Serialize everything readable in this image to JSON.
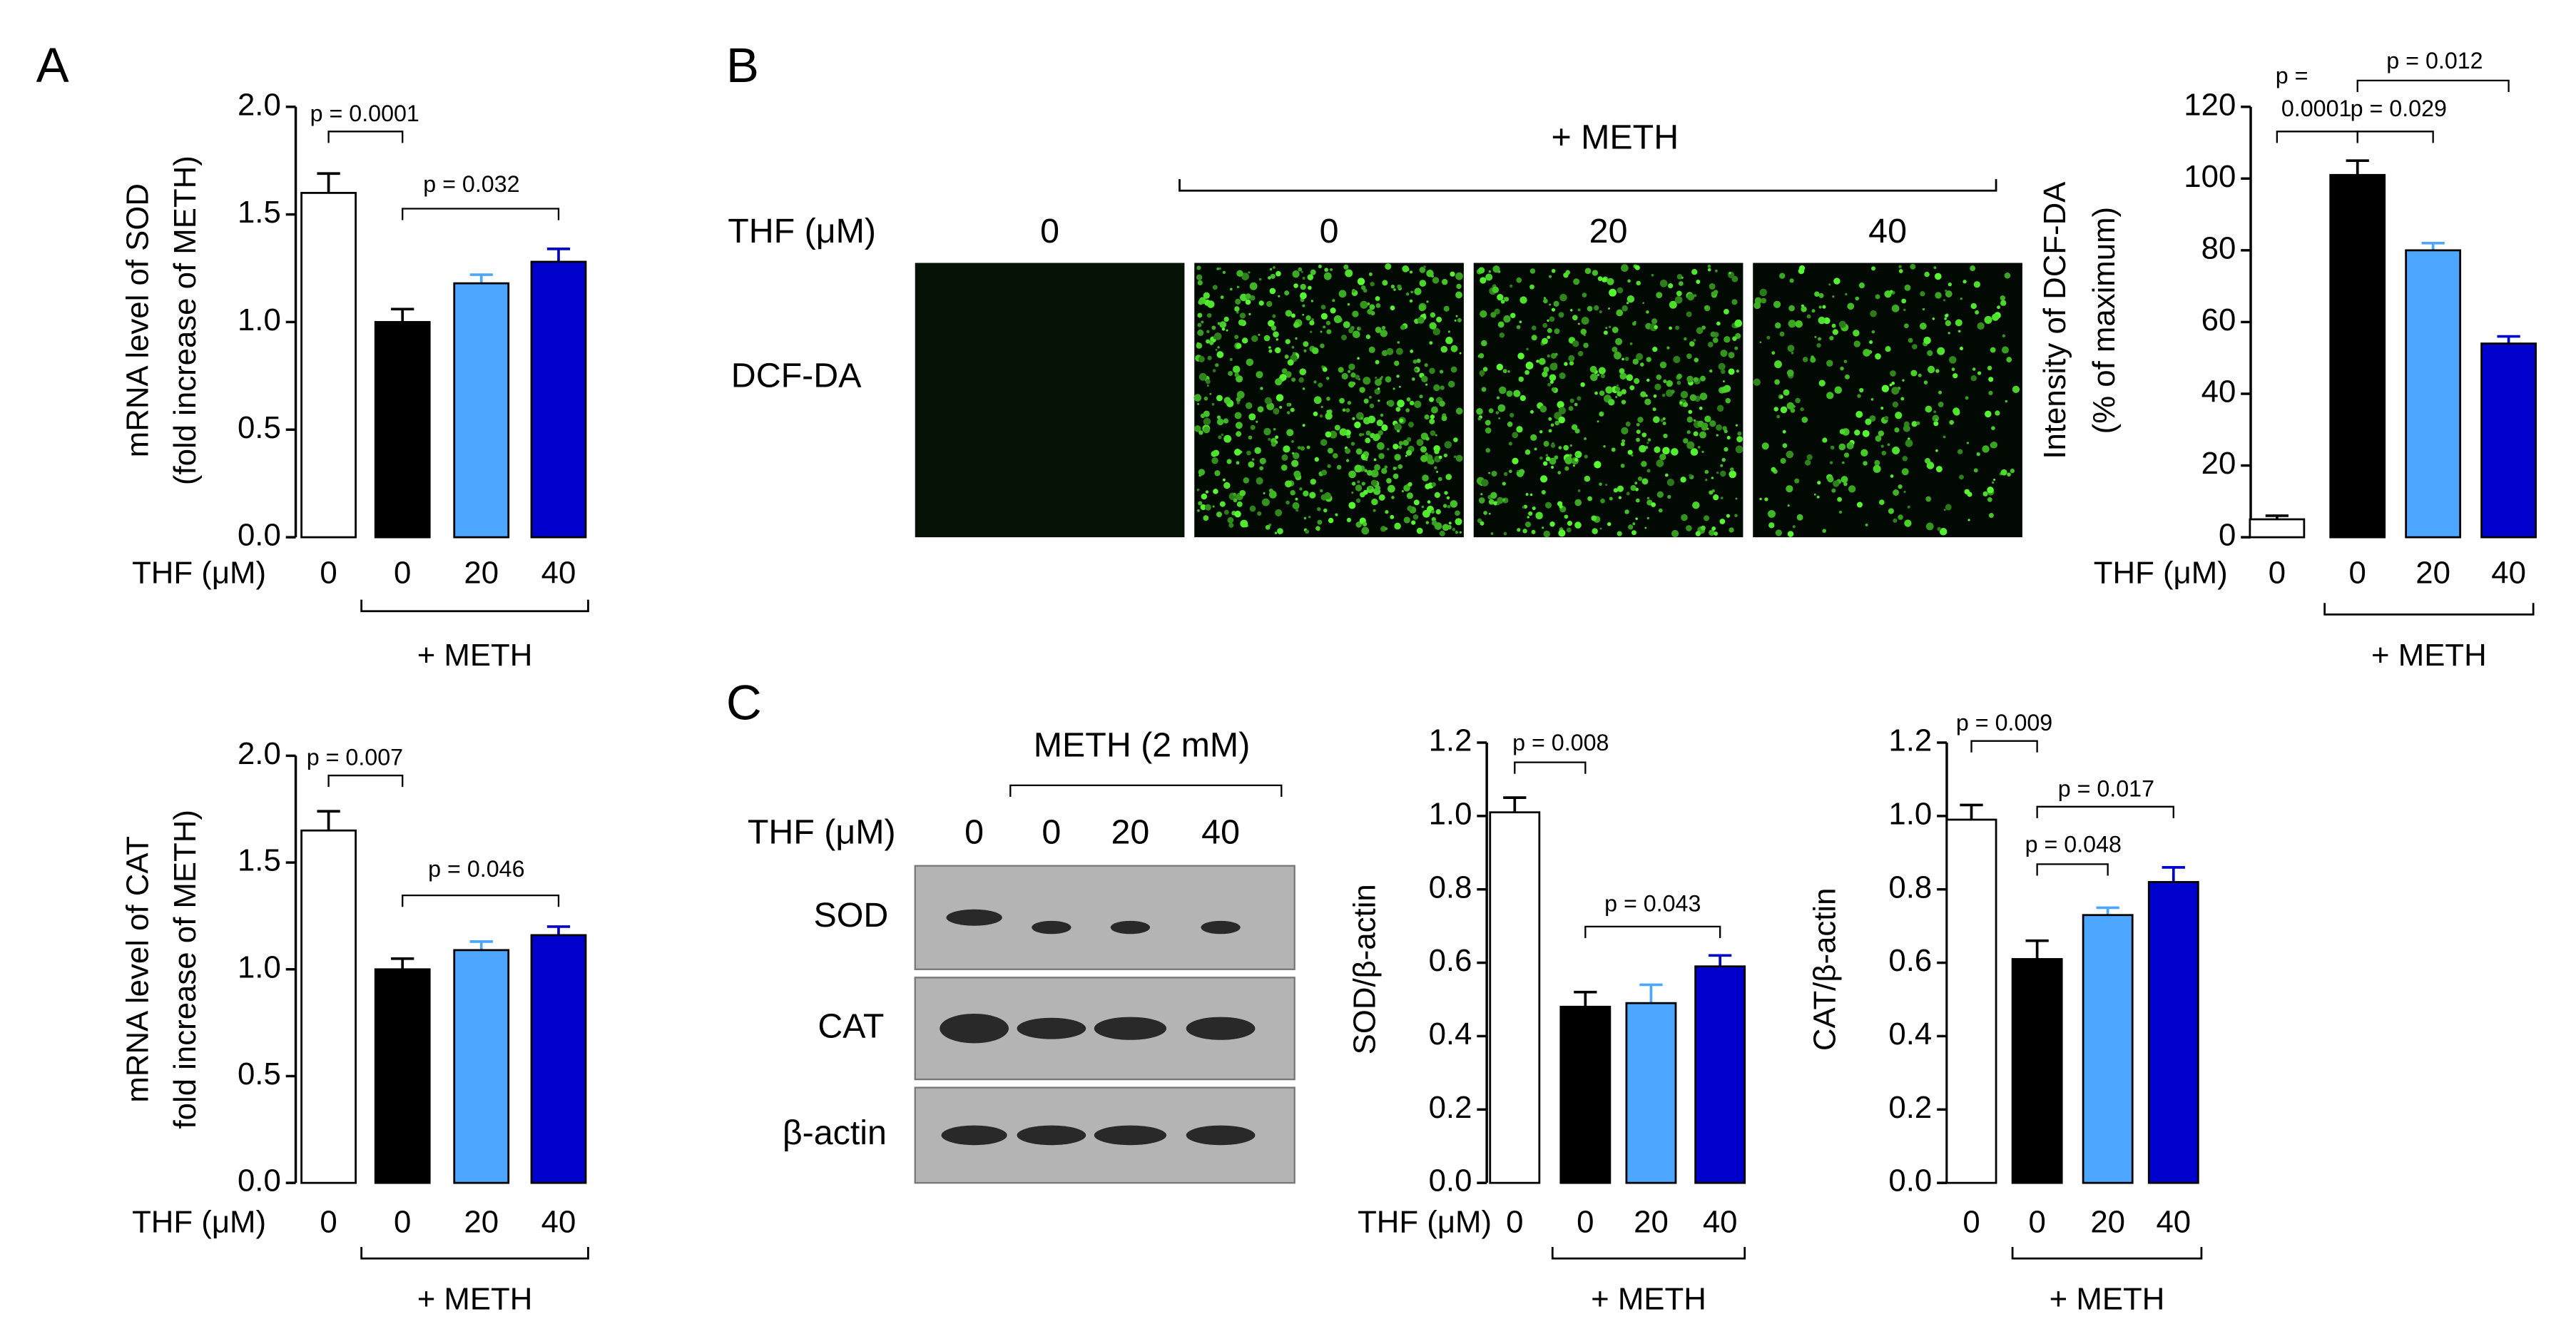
{
  "figure": {
    "panel_labels": [
      "A",
      "B",
      "C"
    ],
    "microscopy": {
      "group_label": "+ METH",
      "x_prefix": "THF (μM)",
      "lanes": [
        "0",
        "0",
        "20",
        "40"
      ],
      "row_label": "DCF-DA"
    },
    "western": {
      "group_label": "METH (2 mM)",
      "x_prefix": "THF (μM)",
      "lanes": [
        "0",
        "0",
        "20",
        "40"
      ],
      "rows": [
        "SOD",
        "CAT",
        "β-actin"
      ]
    }
  },
  "chart_data": [
    {
      "type": "bar",
      "ylabel": [
        "mRNA level of SOD",
        "(fold increase of METH)"
      ],
      "x_prefix": "THF (μM)",
      "group_label": "+ METH",
      "categories": [
        "0",
        "0",
        "20",
        "40"
      ],
      "values": [
        1.6,
        1.0,
        1.18,
        1.28
      ],
      "errors": [
        0.09,
        0.06,
        0.04,
        0.06
      ],
      "colors": [
        "#ffffff",
        "#000000",
        "#4da6ff",
        "#0000cc"
      ],
      "ylim": [
        0,
        2
      ],
      "yticks": [
        {
          "value": 0,
          "label": "0.0"
        },
        {
          "value": 0.5,
          "label": "0.5"
        },
        {
          "value": 1,
          "label": "1.0"
        },
        {
          "value": 1.5,
          "label": "1.5"
        },
        {
          "value": 2,
          "label": "2.0"
        }
      ],
      "annotations": [
        "p = 0.0001",
        "p = 0.032"
      ]
    },
    {
      "type": "bar",
      "ylabel": [
        "mRNA level of CAT",
        "fold increase of METH)"
      ],
      "x_prefix": "THF (μM)",
      "group_label": "+ METH",
      "categories": [
        "0",
        "0",
        "20",
        "40"
      ],
      "values": [
        1.65,
        1.0,
        1.09,
        1.16
      ],
      "errors": [
        0.09,
        0.05,
        0.04,
        0.04
      ],
      "colors": [
        "#ffffff",
        "#000000",
        "#4da6ff",
        "#0000cc"
      ],
      "ylim": [
        0,
        2
      ],
      "yticks": [
        {
          "value": 0,
          "label": "0.0"
        },
        {
          "value": 0.5,
          "label": "0.5"
        },
        {
          "value": 1,
          "label": "1.0"
        },
        {
          "value": 1.5,
          "label": "1.5"
        },
        {
          "value": 2,
          "label": "2.0"
        }
      ],
      "annotations": [
        "p = 0.007",
        "p = 0.046"
      ]
    },
    {
      "type": "bar",
      "ylabel": [
        "Intensity of DCF-DA",
        "(% of maximum)"
      ],
      "x_prefix": "THF (μM)",
      "group_label": "+ METH",
      "categories": [
        "0",
        "0",
        "20",
        "40"
      ],
      "values": [
        5,
        101,
        80,
        54
      ],
      "errors": [
        1,
        4,
        2,
        2
      ],
      "colors": [
        "#ffffff",
        "#000000",
        "#4da6ff",
        "#0000cc"
      ],
      "ylim": [
        0,
        120
      ],
      "yticks": [
        0,
        20,
        40,
        60,
        80,
        100,
        120
      ],
      "annotations": [
        "p =",
        "0.0001",
        "p = 0.029",
        "p = 0.012"
      ]
    },
    {
      "type": "bar",
      "ylabel": [
        "SOD/β-actin"
      ],
      "x_prefix": "THF (μM)",
      "group_label": "+ METH",
      "categories": [
        "0",
        "0",
        "20",
        "40"
      ],
      "values": [
        1.01,
        0.48,
        0.49,
        0.59
      ],
      "errors": [
        0.04,
        0.04,
        0.05,
        0.03
      ],
      "colors": [
        "#ffffff",
        "#000000",
        "#4da6ff",
        "#0000cc"
      ],
      "ylim": [
        0,
        1.2
      ],
      "yticks": [
        {
          "value": 0,
          "label": "0.0"
        },
        {
          "value": 0.2,
          "label": "0.2"
        },
        {
          "value": 0.4,
          "label": "0.4"
        },
        {
          "value": 0.6,
          "label": "0.6"
        },
        {
          "value": 0.8,
          "label": "0.8"
        },
        {
          "value": 1,
          "label": "1.0"
        },
        {
          "value": 1.2,
          "label": "1.2"
        }
      ],
      "annotations": [
        "p = 0.008",
        "p = 0.043"
      ]
    },
    {
      "type": "bar",
      "ylabel": [
        "CAT/β-actin"
      ],
      "group_label": "+ METH",
      "categories": [
        "0",
        "0",
        "20",
        "40"
      ],
      "values": [
        0.99,
        0.61,
        0.73,
        0.82
      ],
      "errors": [
        0.04,
        0.05,
        0.02,
        0.04
      ],
      "colors": [
        "#ffffff",
        "#000000",
        "#4da6ff",
        "#0000cc"
      ],
      "ylim": [
        0,
        1.2
      ],
      "yticks": [
        {
          "value": 0,
          "label": "0.0"
        },
        {
          "value": 0.2,
          "label": "0.2"
        },
        {
          "value": 0.4,
          "label": "0.4"
        },
        {
          "value": 0.6,
          "label": "0.6"
        },
        {
          "value": 0.8,
          "label": "0.8"
        },
        {
          "value": 1,
          "label": "1.0"
        },
        {
          "value": 1.2,
          "label": "1.2"
        }
      ],
      "annotations": [
        "p = 0.009",
        "p = 0.048",
        "p = 0.017"
      ]
    }
  ]
}
